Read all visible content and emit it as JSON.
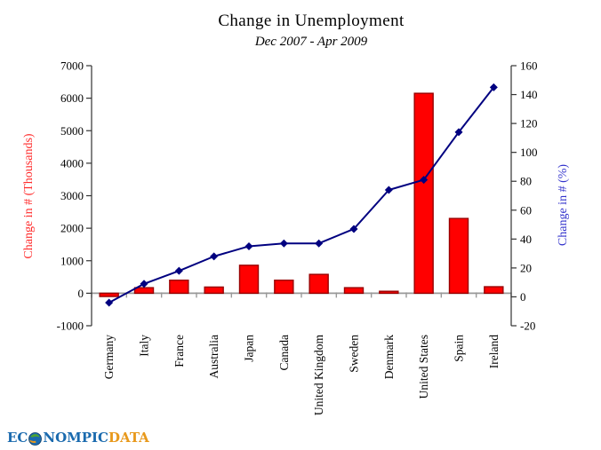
{
  "logo": {
    "prefix": "EC",
    "middle": "NOMPIC",
    "suffix": "DATA"
  },
  "chart_data": {
    "type": "bar-line-combo",
    "title": "Change in Unemployment",
    "subtitle": "Dec 2007 - Apr 2009",
    "categories": [
      "Germany",
      "Italy",
      "France",
      "Australia",
      "Japan",
      "Canada",
      "United Kingdom",
      "Sweden",
      "Denmark",
      "United States",
      "Spain",
      "Ireland"
    ],
    "series": [
      {
        "name": "Change in # (Thousands)",
        "type": "bar",
        "axis": "left",
        "color": "#ff0000",
        "border_color": "#990000",
        "values": [
          -100,
          170,
          400,
          190,
          860,
          400,
          580,
          170,
          60,
          6150,
          2300,
          200
        ]
      },
      {
        "name": "Change in # (%)",
        "type": "line",
        "axis": "right",
        "color": "#000080",
        "marker": "diamond",
        "values": [
          -4,
          9,
          18,
          28,
          35,
          37,
          37,
          47,
          74,
          81,
          114,
          145
        ]
      }
    ],
    "left_axis": {
      "label": "Change in # (Thousands)",
      "label_color": "#ff2a2a",
      "min": -1000,
      "max": 7000,
      "step": 1000
    },
    "right_axis": {
      "label": "Change in # (%)",
      "label_color": "#3333cc",
      "min": -20,
      "max": 160,
      "step": 20
    },
    "grid": "none",
    "legend": "none",
    "background": "#ffffff",
    "axis_line_color": "#333333",
    "zero_line_color": "#999999",
    "tick_text_color": "#000000"
  }
}
